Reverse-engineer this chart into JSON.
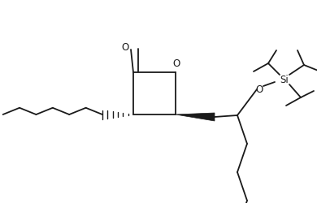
{
  "bg_color": "#ffffff",
  "line_color": "#1a1a1a",
  "line_width": 1.3,
  "fig_width": 3.9,
  "fig_height": 2.5,
  "dpi": 100,
  "font_size": 8.5,
  "si_label": "Si",
  "o_label": "O"
}
